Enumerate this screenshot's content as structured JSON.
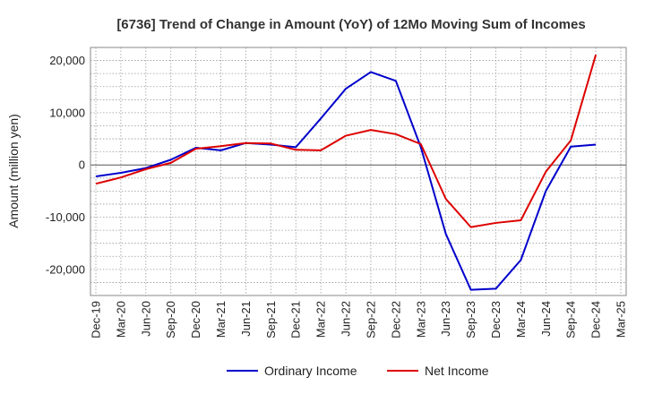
{
  "chart_data": {
    "type": "line",
    "title": "[6736]  Trend of Change in Amount (YoY) of 12Mo Moving Sum of Incomes",
    "xlabel": "",
    "ylabel": "Amount (million yen)",
    "ylim": [
      -25000,
      22500
    ],
    "yticks": [
      -20000,
      -10000,
      0,
      10000,
      20000
    ],
    "ytick_labels": [
      "-20,000",
      "-10,000",
      "0",
      "10,000",
      "20,000"
    ],
    "categories": [
      "Dec-19",
      "Mar-20",
      "Jun-20",
      "Sep-20",
      "Dec-20",
      "Mar-21",
      "Jun-21",
      "Sep-21",
      "Dec-21",
      "Mar-22",
      "Jun-22",
      "Sep-22",
      "Dec-22",
      "Mar-23",
      "Jun-23",
      "Sep-23",
      "Dec-23",
      "Mar-24",
      "Jun-24",
      "Sep-24",
      "Dec-24",
      "Mar-25"
    ],
    "grid": true,
    "legend_position": "bottom-center",
    "series": [
      {
        "name": "Ordinary Income",
        "color": "#0000cc",
        "values": [
          -2200,
          -1500,
          -600,
          1000,
          3300,
          2800,
          4200,
          3900,
          3400,
          8900,
          14600,
          17800,
          16100,
          3400,
          -13200,
          -23900,
          -23700,
          -18200,
          -5000,
          3500,
          3900,
          null
        ]
      },
      {
        "name": "Net Income",
        "color": "#dd0000",
        "values": [
          -3600,
          -2400,
          -800,
          400,
          3100,
          3600,
          4200,
          4100,
          2900,
          2800,
          5600,
          6700,
          5900,
          4000,
          -6500,
          -11900,
          -11100,
          -10600,
          -1300,
          4700,
          21100,
          null
        ]
      }
    ]
  }
}
